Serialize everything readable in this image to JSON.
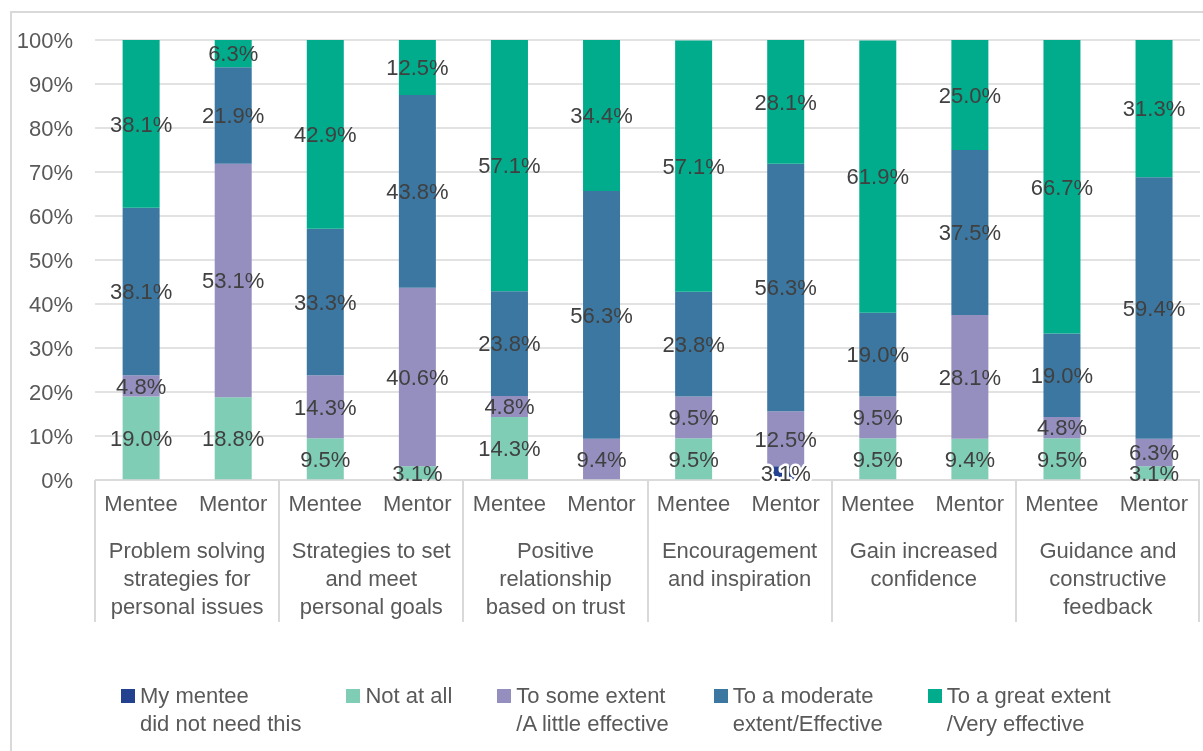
{
  "chart_data": {
    "type": "bar",
    "stacked": true,
    "categories": [
      "Mentee",
      "Mentor",
      "Mentee",
      "Mentor",
      "Mentee",
      "Mentor",
      "Mentee",
      "Mentor",
      "Mentee",
      "Mentor",
      "Mentee",
      "Mentor"
    ],
    "annotations": [
      "Problem solving strategies for personal issues",
      "Strategies to set and meet personal goals",
      "Positive relationship based on trust",
      "Encouragement and inspiration",
      "Gain increased confidence",
      "Guidance and constructive feedback"
    ],
    "series": [
      {
        "name": "My mentee\ndid not need this",
        "color": "#22418f",
        "values": [
          null,
          null,
          null,
          null,
          null,
          null,
          null,
          3.1,
          null,
          null,
          null,
          null
        ],
        "value_labels": [
          null,
          null,
          null,
          null,
          null,
          null,
          null,
          "3.1%",
          null,
          null,
          null,
          null
        ]
      },
      {
        "name": "Not at all",
        "color": "#7fcdb5",
        "values": [
          19.0,
          18.8,
          9.5,
          3.1,
          14.3,
          null,
          9.5,
          null,
          9.5,
          9.4,
          9.5,
          3.1
        ],
        "value_labels": [
          "19.0%",
          "18.8%",
          "9.5%",
          "3.1%",
          "14.3%",
          null,
          "9.5%",
          null,
          "9.5%",
          "9.4%",
          "9.5%",
          "3.1%"
        ]
      },
      {
        "name": "To some extent\n/A little effective",
        "color": "#948fbf",
        "values": [
          4.8,
          53.1,
          14.3,
          40.6,
          4.8,
          9.4,
          9.5,
          12.5,
          9.5,
          28.1,
          4.8,
          6.3
        ],
        "value_labels": [
          "4.8%",
          "53.1%",
          "14.3%",
          "40.6%",
          "4.8%",
          "9.4%",
          "9.5%",
          "12.5%",
          "9.5%",
          "28.1%",
          "4.8%",
          "6.3%"
        ]
      },
      {
        "name": "To a moderate\nextent/Effective",
        "color": "#3b77a0",
        "values": [
          38.1,
          21.9,
          33.3,
          43.8,
          23.8,
          56.3,
          23.8,
          56.3,
          19.0,
          37.5,
          19.0,
          59.4
        ],
        "value_labels": [
          "38.1%",
          "21.9%",
          "33.3%",
          "43.8%",
          "23.8%",
          "56.3%",
          "23.8%",
          "56.3%",
          "19.0%",
          "37.5%",
          "19.0%",
          "59.4%"
        ]
      },
      {
        "name": "To a great extent\n/Very effective",
        "color": "#00ac8c",
        "values": [
          38.1,
          6.3,
          42.9,
          12.5,
          57.1,
          34.4,
          57.1,
          28.1,
          61.9,
          25.0,
          66.7,
          31.3
        ],
        "value_labels": [
          "38.1%",
          "6.3%",
          "42.9%",
          "12.5%",
          "57.1%",
          "34.4%",
          "57.1%",
          "28.1%",
          "61.9%",
          "25.0%",
          "66.7%",
          "31.3%"
        ]
      }
    ],
    "ylim": [
      0,
      100
    ],
    "yticks": [
      {
        "value": 0,
        "label": "0%"
      },
      {
        "value": 10,
        "label": "10%"
      },
      {
        "value": 20,
        "label": "20%"
      },
      {
        "value": 30,
        "label": "30%"
      },
      {
        "value": 40,
        "label": "40%"
      },
      {
        "value": 50,
        "label": "50%"
      },
      {
        "value": 60,
        "label": "60%"
      },
      {
        "value": 70,
        "label": "70%"
      },
      {
        "value": 80,
        "label": "80%"
      },
      {
        "value": 90,
        "label": "90%"
      },
      {
        "value": 100,
        "label": "100%"
      }
    ],
    "grid": "y",
    "legend": "bottom"
  }
}
